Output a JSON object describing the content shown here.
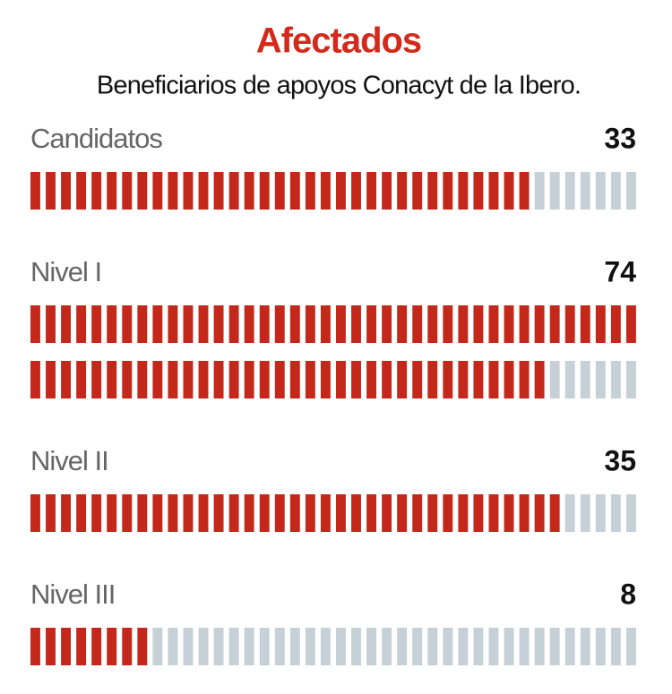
{
  "chart_data": {
    "type": "pictogram",
    "title": "Afectados",
    "subtitle": "Beneficiarios de apoyos Conacyt de la Ibero.",
    "categories": [
      "Candidatos",
      "Nivel I",
      "Nivel II",
      "Nivel III"
    ],
    "values": [
      33,
      74,
      35,
      8
    ],
    "color": "#c3281a",
    "empty_color": "#c6d0d7"
  }
}
